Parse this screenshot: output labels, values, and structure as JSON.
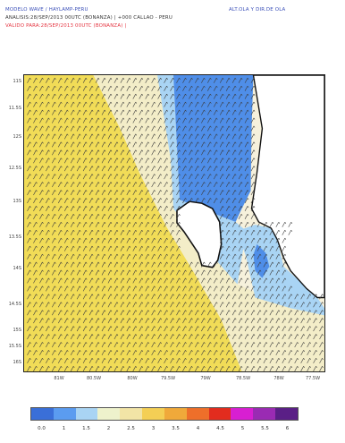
{
  "header": {
    "line1_left": "MODELO WAVE / HAYLAMP-PERU",
    "line1_right": "ALT.OLA Y DIR.DE OLA",
    "line2": "ANALISIS:28/SEP/2013 00UTC (BONANZA)  |  +000   CALLAO - PERU",
    "line3": "VALIDO PARA:28/SEP/2013 00UTC (BONANZA)  |"
  },
  "lat_labels": [
    "11S",
    "11.5S",
    "12S",
    "12.5S",
    "13S",
    "13.5S",
    "14S",
    "14.5S",
    "15S",
    "15.5S",
    "16S"
  ],
  "lon_labels": [
    "81W",
    "80.5W",
    "80W",
    "79.5W",
    "79W",
    "78.5W",
    "78W",
    "77.5W"
  ],
  "legend": {
    "colors": [
      "#3a6fd8",
      "#5b9cf0",
      "#a9d4f4",
      "#eef2cc",
      "#f2e4a6",
      "#f4cf55",
      "#f0a93a",
      "#ee6f2a",
      "#e22c1e",
      "#d81fd2",
      "#9a2bb3",
      "#5a1f86"
    ],
    "labels": [
      "0.0",
      "1",
      "1.5",
      "2",
      "2.5",
      "3",
      "3.5",
      "4",
      "4.5",
      "5",
      "5.5",
      "6"
    ]
  },
  "map_colors": {
    "yellow": "#f1dc57",
    "beige": "#f3edc8",
    "cream": "#f6f1dc",
    "light_blue": "#a9d4f4",
    "blue": "#4f8ee8",
    "arrow": "#3c3c3c",
    "land": "#ffffff"
  }
}
